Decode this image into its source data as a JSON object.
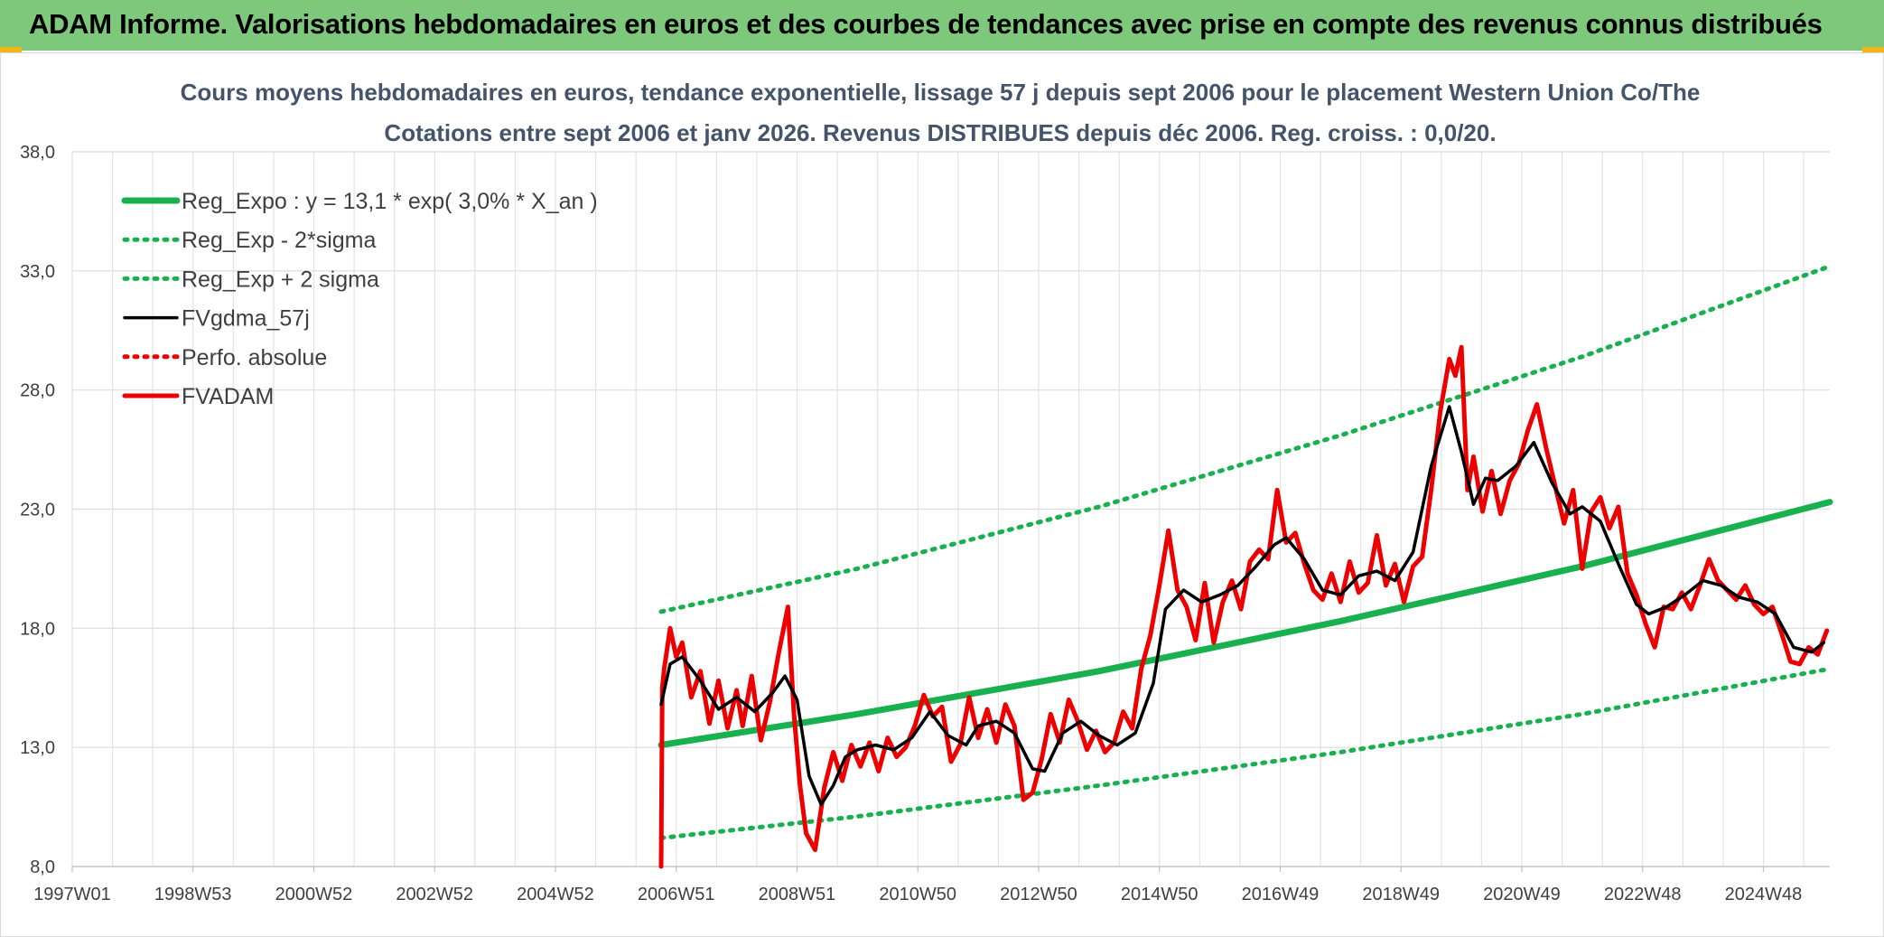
{
  "header": {
    "title": "ADAM Informe. Valorisations hebdomadaires en euros et des courbes de tendances avec prise en compte des revenus connus distribués"
  },
  "colors": {
    "banner": "#7ec87c",
    "trend_green": "#19b04f",
    "adam_red": "#ee0000",
    "smooth_black": "#000000",
    "accent_orange": "#f2b61a"
  },
  "chart_data": {
    "type": "line",
    "title_lines": [
      "Cours moyens hebdomadaires en euros, tendance exponentielle, lissage 57 j depuis sept 2006 pour le placement Western Union Co/The",
      "Cotations entre sept 2006 et janv 2026. Revenus DISTRIBUES depuis déc 2006. Reg. croiss. : 0,0/20."
    ],
    "xlabel": "",
    "ylabel": "",
    "ylim": [
      8,
      38
    ],
    "yticks": [
      "8,0",
      "13,0",
      "18,0",
      "23,0",
      "28,0",
      "33,0",
      "38,0"
    ],
    "xlim": [
      1997.0,
      2026.1
    ],
    "xticks": [
      {
        "label": "1997W01",
        "x": 1997.0
      },
      {
        "label": "1998W53",
        "x": 1999.0
      },
      {
        "label": "2000W52",
        "x": 2001.0
      },
      {
        "label": "2002W52",
        "x": 2003.0
      },
      {
        "label": "2004W52",
        "x": 2005.0
      },
      {
        "label": "2006W51",
        "x": 2007.0
      },
      {
        "label": "2008W51",
        "x": 2009.0
      },
      {
        "label": "2010W50",
        "x": 2011.0
      },
      {
        "label": "2012W50",
        "x": 2013.0
      },
      {
        "label": "2014W50",
        "x": 2015.0
      },
      {
        "label": "2016W49",
        "x": 2017.0
      },
      {
        "label": "2018W49",
        "x": 2019.0
      },
      {
        "label": "2020W49",
        "x": 2021.0
      },
      {
        "label": "2022W48",
        "x": 2023.0
      },
      {
        "label": "2024W48",
        "x": 2025.0
      }
    ],
    "grid": true,
    "legend_position": "top-left",
    "series": [
      {
        "name": "Reg_Expo : y = 13,1 * exp( 3,0% *  X_an )",
        "style": "solid-thick",
        "color": "#19b04f",
        "x": [
          2006.75,
          2010.0,
          2014.0,
          2018.0,
          2022.0,
          2026.1
        ],
        "y": [
          13.1,
          14.4,
          16.2,
          18.3,
          20.6,
          23.3
        ]
      },
      {
        "name": "Reg_Exp - 2*sigma",
        "style": "dotted",
        "color": "#19b04f",
        "x": [
          2006.75,
          2010.0,
          2014.0,
          2018.0,
          2022.0,
          2026.1
        ],
        "y": [
          9.2,
          10.1,
          11.4,
          12.8,
          14.4,
          16.3
        ]
      },
      {
        "name": "Reg_Exp + 2 sigma",
        "style": "dotted",
        "color": "#19b04f",
        "x": [
          2006.75,
          2010.0,
          2014.0,
          2018.0,
          2022.0,
          2026.1
        ],
        "y": [
          18.7,
          20.5,
          23.1,
          26.1,
          29.4,
          33.2
        ]
      },
      {
        "name": "FVgdma_57j",
        "style": "solid",
        "color": "#000000",
        "x": [
          2006.75,
          2006.9,
          2007.1,
          2007.4,
          2007.7,
          2008.0,
          2008.3,
          2008.6,
          2008.8,
          2009.0,
          2009.2,
          2009.4,
          2009.6,
          2009.8,
          2010.0,
          2010.3,
          2010.6,
          2010.9,
          2011.2,
          2011.5,
          2011.8,
          2012.0,
          2012.3,
          2012.6,
          2012.9,
          2013.1,
          2013.4,
          2013.7,
          2014.0,
          2014.3,
          2014.6,
          2014.9,
          2015.1,
          2015.4,
          2015.7,
          2016.0,
          2016.3,
          2016.6,
          2016.9,
          2017.1,
          2017.4,
          2017.7,
          2018.0,
          2018.3,
          2018.6,
          2018.9,
          2019.2,
          2019.5,
          2019.8,
          2020.0,
          2020.2,
          2020.4,
          2020.6,
          2020.9,
          2021.2,
          2021.5,
          2021.8,
          2022.0,
          2022.3,
          2022.6,
          2022.9,
          2023.1,
          2023.4,
          2023.7,
          2024.0,
          2024.3,
          2024.6,
          2024.9,
          2025.2,
          2025.5,
          2025.8,
          2026.0
        ],
        "y": [
          14.8,
          16.5,
          16.8,
          15.8,
          14.6,
          15.1,
          14.5,
          15.3,
          16.0,
          15.0,
          11.8,
          10.6,
          11.4,
          12.6,
          12.9,
          13.1,
          12.9,
          13.4,
          14.5,
          13.5,
          13.1,
          13.9,
          14.1,
          13.6,
          12.1,
          12.0,
          13.6,
          14.1,
          13.5,
          13.1,
          13.6,
          15.7,
          18.8,
          19.6,
          19.1,
          19.4,
          19.8,
          20.6,
          21.5,
          21.8,
          20.9,
          19.6,
          19.4,
          20.2,
          20.4,
          20.0,
          21.2,
          24.8,
          27.3,
          25.4,
          23.2,
          24.3,
          24.2,
          24.8,
          25.8,
          24.1,
          22.8,
          23.1,
          22.5,
          20.7,
          19.0,
          18.6,
          18.9,
          19.4,
          20.0,
          19.8,
          19.3,
          19.1,
          18.6,
          17.2,
          17.0,
          17.4
        ]
      },
      {
        "name": "Perfo. absolue",
        "style": "dotted",
        "color": "#ee0000",
        "x": [],
        "y": []
      },
      {
        "name": "FVADAM",
        "style": "solid-thick",
        "color": "#ee0000",
        "x": [
          2006.75,
          2006.77,
          2006.8,
          2006.9,
          2007.0,
          2007.1,
          2007.25,
          2007.4,
          2007.55,
          2007.7,
          2007.85,
          2008.0,
          2008.1,
          2008.25,
          2008.4,
          2008.55,
          2008.7,
          2008.85,
          2008.95,
          2009.05,
          2009.15,
          2009.3,
          2009.45,
          2009.6,
          2009.75,
          2009.9,
          2010.05,
          2010.2,
          2010.35,
          2010.5,
          2010.65,
          2010.8,
          2010.95,
          2011.1,
          2011.25,
          2011.4,
          2011.55,
          2011.7,
          2011.85,
          2012.0,
          2012.15,
          2012.3,
          2012.45,
          2012.6,
          2012.75,
          2012.9,
          2013.05,
          2013.2,
          2013.35,
          2013.5,
          2013.65,
          2013.8,
          2013.95,
          2014.1,
          2014.25,
          2014.4,
          2014.55,
          2014.7,
          2014.85,
          2015.0,
          2015.15,
          2015.3,
          2015.45,
          2015.6,
          2015.75,
          2015.9,
          2016.05,
          2016.2,
          2016.35,
          2016.5,
          2016.65,
          2016.8,
          2016.95,
          2017.1,
          2017.25,
          2017.4,
          2017.55,
          2017.7,
          2017.85,
          2018.0,
          2018.15,
          2018.3,
          2018.45,
          2018.6,
          2018.75,
          2018.9,
          2019.05,
          2019.2,
          2019.35,
          2019.5,
          2019.65,
          2019.8,
          2019.9,
          2020.0,
          2020.1,
          2020.2,
          2020.35,
          2020.5,
          2020.65,
          2020.8,
          2020.95,
          2021.1,
          2021.25,
          2021.4,
          2021.55,
          2021.7,
          2021.85,
          2022.0,
          2022.15,
          2022.3,
          2022.45,
          2022.6,
          2022.75,
          2022.9,
          2023.05,
          2023.2,
          2023.35,
          2023.5,
          2023.65,
          2023.8,
          2023.95,
          2024.1,
          2024.25,
          2024.4,
          2024.55,
          2024.7,
          2024.85,
          2025.0,
          2025.15,
          2025.3,
          2025.45,
          2025.6,
          2025.75,
          2025.9,
          2026.05
        ],
        "y": [
          8.0,
          15.5,
          16.3,
          18.0,
          16.8,
          17.4,
          15.1,
          16.2,
          14.0,
          15.8,
          13.8,
          15.4,
          13.9,
          16.0,
          13.3,
          14.9,
          17.0,
          18.9,
          14.4,
          11.4,
          9.4,
          8.7,
          11.3,
          12.8,
          11.6,
          13.1,
          12.2,
          13.2,
          12.0,
          13.4,
          12.6,
          13.0,
          13.9,
          15.2,
          14.3,
          14.7,
          12.4,
          13.1,
          15.1,
          13.4,
          14.6,
          13.2,
          14.8,
          13.9,
          10.8,
          11.1,
          12.5,
          14.4,
          13.2,
          15.0,
          14.1,
          12.9,
          13.7,
          12.8,
          13.2,
          14.5,
          13.8,
          16.3,
          17.7,
          19.8,
          22.1,
          19.6,
          18.9,
          17.5,
          19.9,
          17.4,
          19.1,
          20.0,
          18.8,
          20.8,
          21.3,
          20.9,
          23.8,
          21.6,
          22.0,
          20.7,
          19.6,
          19.2,
          20.3,
          19.1,
          20.8,
          19.5,
          19.9,
          21.9,
          19.8,
          20.7,
          19.1,
          20.6,
          21.0,
          23.8,
          27.1,
          29.3,
          28.6,
          29.8,
          23.8,
          25.2,
          22.9,
          24.6,
          22.8,
          24.2,
          24.9,
          26.3,
          27.4,
          25.6,
          24.0,
          22.4,
          23.8,
          20.5,
          22.9,
          23.5,
          22.2,
          23.1,
          20.3,
          19.4,
          18.2,
          17.2,
          18.9,
          18.8,
          19.5,
          18.8,
          19.8,
          20.9,
          20.0,
          19.6,
          19.2,
          19.8,
          19.0,
          18.6,
          18.9,
          17.8,
          16.6,
          16.5,
          17.2,
          16.9,
          17.9
        ]
      }
    ]
  }
}
